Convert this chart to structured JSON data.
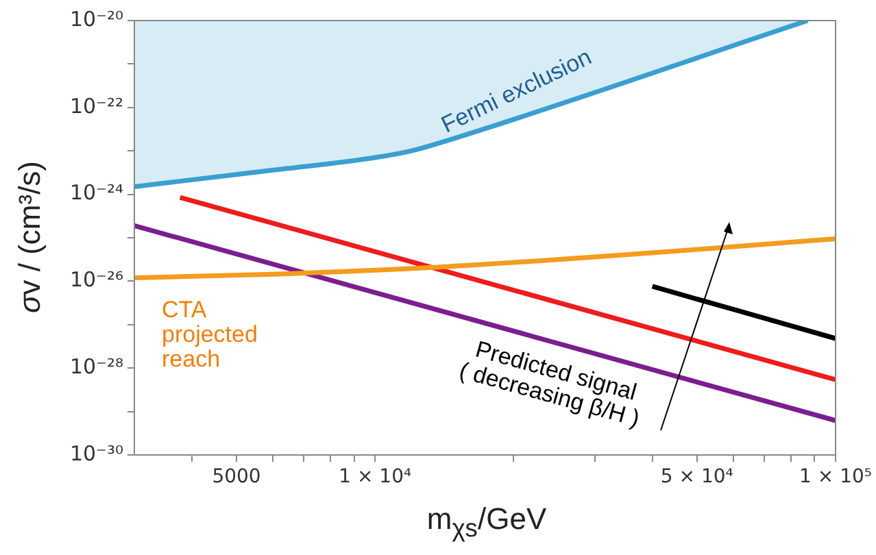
{
  "chart_data": {
    "type": "line",
    "xlabel": "m$_{χs}$/GeV",
    "ylabel": "σv / (cm³/s)",
    "log": "xy",
    "grid": false,
    "legend": false,
    "marker": "none",
    "line_style": "solid",
    "xlim": [
      3000,
      100000
    ],
    "xticks": [
      {
        "value": 4000,
        "label": null
      },
      {
        "value": 5000,
        "label": "5000"
      },
      {
        "value": 6000,
        "label": null
      },
      {
        "value": 7000,
        "label": null
      },
      {
        "value": 8000,
        "label": null
      },
      {
        "value": 9000,
        "label": null
      },
      {
        "value": 10000,
        "label": "1 × 10⁴"
      },
      {
        "value": 20000,
        "label": null
      },
      {
        "value": 30000,
        "label": null
      },
      {
        "value": 40000,
        "label": null
      },
      {
        "value": 50000,
        "label": "5 × 10⁴"
      },
      {
        "value": 60000,
        "label": null
      },
      {
        "value": 70000,
        "label": null
      },
      {
        "value": 80000,
        "label": null
      },
      {
        "value": 90000,
        "label": null
      },
      {
        "value": 100000,
        "label": "1 × 10⁵"
      }
    ],
    "ylim": [
      1e-30,
      1e-20
    ],
    "yticks": [
      {
        "value": 1e-30,
        "label": "10⁻³⁰"
      },
      {
        "value": 1e-29,
        "label": null
      },
      {
        "value": 1e-28,
        "label": "10⁻²⁸"
      },
      {
        "value": 1e-27,
        "label": null
      },
      {
        "value": 1e-26,
        "label": "10⁻²⁶"
      },
      {
        "value": 1e-25,
        "label": null
      },
      {
        "value": 1e-24,
        "label": "10⁻²⁴"
      },
      {
        "value": 1e-23,
        "label": null
      },
      {
        "value": 1e-22,
        "label": "10⁻²²"
      },
      {
        "value": 1e-21,
        "label": null
      },
      {
        "value": 1e-20,
        "label": "10⁻²⁰"
      }
    ],
    "series": [
      {
        "color": "#3a9fd0",
        "x": [
          3000,
          6000,
          10000,
          12000,
          13600,
          87000
        ],
        "values": [
          1.5e-24,
          3.6e-24,
          7e-24,
          1e-23,
          1.45e-23,
          1e-20
        ],
        "lower": [
          1.5e-24,
          3.6e-24,
          7e-24,
          1e-23,
          1.45e-23,
          1e-20
        ],
        "upper": [
          1e-20,
          1e-20,
          1e-20,
          1e-20,
          1e-20,
          1e-20
        ]
      },
      {
        "color": "#f39c1e",
        "x": [
          3000,
          6000,
          13600,
          55000,
          100000
        ],
        "values": [
          1.2e-26,
          1.45e-26,
          2.1e-26,
          5.8e-26,
          9.5e-26
        ]
      },
      {
        "color": "#ee1c1c",
        "x": [
          3770,
          100000
        ],
        "values": [
          8.5e-25,
          5.4e-29
        ]
      },
      {
        "color": "#7b1e8f",
        "x": [
          3000,
          100000
        ],
        "values": [
          1.9e-25,
          6.2e-30
        ]
      },
      {
        "color": "#000000",
        "x": [
          40000,
          100000
        ],
        "values": [
          7.6e-27,
          4.8e-28
        ]
      }
    ],
    "annotations": [
      "Fermi exclusion",
      "CTA\nprojected\nreach",
      "Predicted signal\n( decreasing β/H )"
    ]
  }
}
